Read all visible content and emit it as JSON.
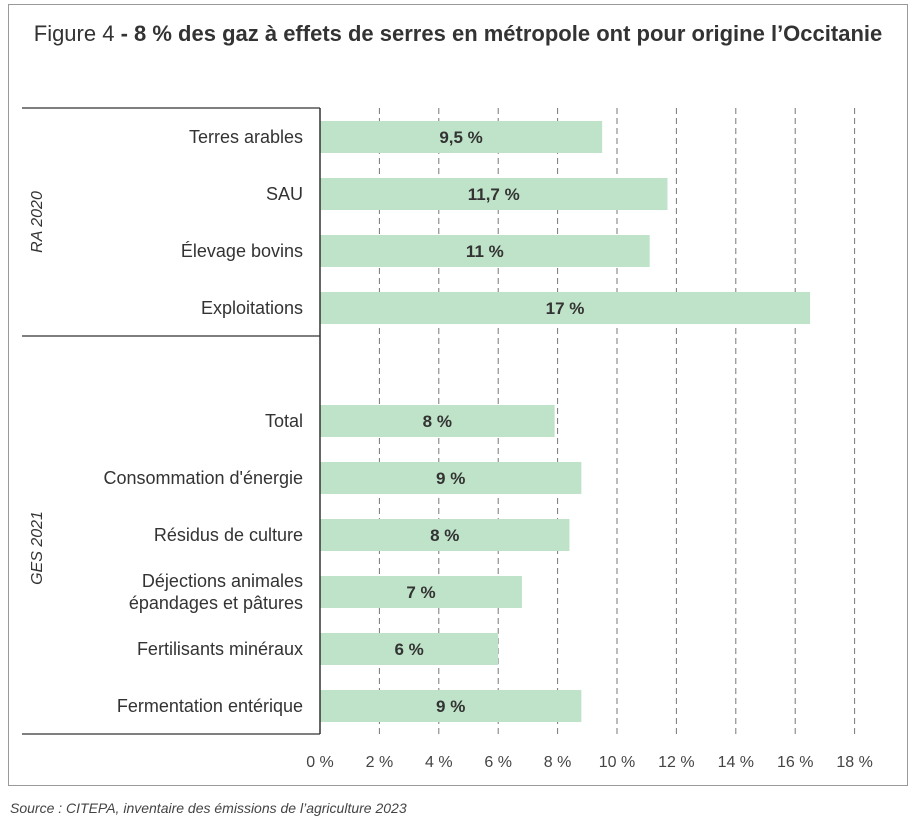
{
  "title": {
    "prefix": "Figure 4",
    "main": " - 8 % des gaz à effets de serres en métropole ont pour origine l’Occitanie"
  },
  "source": "Source : CITEPA, inventaire des émissions de l’agriculture 2023",
  "colors": {
    "bar": "#bfe3c8",
    "axis": "#333333",
    "grid": "#777777"
  },
  "chart_data": {
    "type": "bar",
    "orientation": "horizontal",
    "title": "8 % des gaz à effets de serres en métropole ont pour origine l’Occitanie",
    "xlim": [
      0,
      18
    ],
    "ticks": [
      {
        "value": 0,
        "label": "0 %"
      },
      {
        "value": 2,
        "label": "2 %"
      },
      {
        "value": 4,
        "label": "4 %"
      },
      {
        "value": 6,
        "label": "6 %"
      },
      {
        "value": 8,
        "label": "8 %"
      },
      {
        "value": 10,
        "label": "10 %"
      },
      {
        "value": 12,
        "label": "12 %"
      },
      {
        "value": 14,
        "label": "14 %"
      },
      {
        "value": 16,
        "label": "16 %"
      },
      {
        "value": 18,
        "label": "18 %"
      }
    ],
    "grid": "vertical dashed",
    "groups": [
      {
        "name": "RA 2020",
        "bars": [
          {
            "category": "Terres arables",
            "value": 9.5,
            "label": "9,5 %"
          },
          {
            "category": "SAU",
            "value": 11.7,
            "label": "11,7 %"
          },
          {
            "category": "Élevage bovins",
            "value": 11.1,
            "label": "11 %"
          },
          {
            "category": "Exploitations",
            "value": 16.5,
            "label": "17 %"
          }
        ]
      },
      {
        "name": "GES 2021",
        "bars": [
          {
            "category": "Total",
            "value": 7.9,
            "label": "8 %"
          },
          {
            "category": "Consommation d'énergie",
            "value": 8.8,
            "label": "9 %"
          },
          {
            "category": "Résidus de culture",
            "value": 8.4,
            "label": "8 %"
          },
          {
            "category": "Déjections animales\népandages et pâtures",
            "value": 6.8,
            "label": "7 %"
          },
          {
            "category": "Fertilisants minéraux",
            "value": 6.0,
            "label": "6 %"
          },
          {
            "category": "Fermentation entérique",
            "value": 8.8,
            "label": "9 %"
          }
        ]
      }
    ]
  }
}
